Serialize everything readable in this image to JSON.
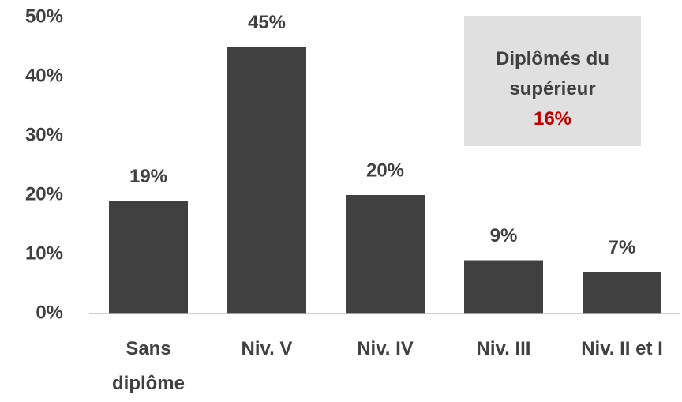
{
  "chart_data": {
    "type": "bar",
    "categories": [
      "Sans diplôme",
      "Niv. V",
      "Niv. IV",
      "Niv. III",
      "Niv. II et I"
    ],
    "values": [
      19,
      45,
      20,
      9,
      7
    ],
    "value_labels": [
      "19%",
      "45%",
      "20%",
      "9%",
      "7%"
    ],
    "color": "#404040",
    "ylim": [
      0,
      50
    ],
    "yticks": [
      {
        "value": 0,
        "label": "0%"
      },
      {
        "value": 10,
        "label": "10%"
      },
      {
        "value": 20,
        "label": "20%"
      },
      {
        "value": 30,
        "label": "30%"
      },
      {
        "value": 40,
        "label": "40%"
      },
      {
        "value": 50,
        "label": "50%"
      }
    ],
    "annotation": {
      "text": "Diplômés du supérieur",
      "value_label": "16%"
    }
  }
}
